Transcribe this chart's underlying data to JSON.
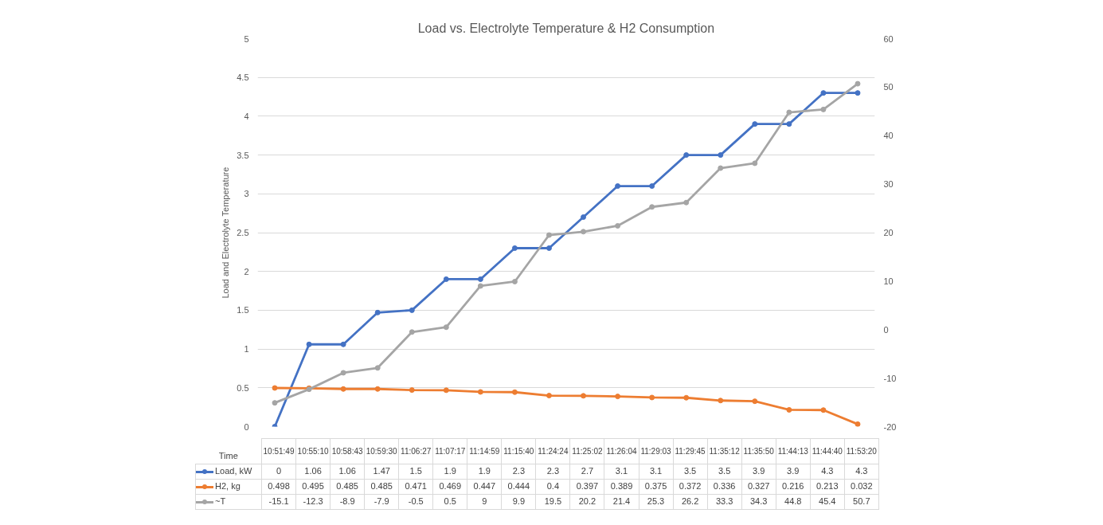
{
  "chart_data": {
    "type": "line",
    "title": "Load vs. Electrolyte Temperature & H2 Consumption",
    "xlabel": "Time",
    "ylabel": "Load and Electrolyte Temperature",
    "categories": [
      "10:51:49",
      "10:55:10",
      "10:58:43",
      "10:59:30",
      "11:06:27",
      "11:07:17",
      "11:14:59",
      "11:15:40",
      "11:24:24",
      "11:25:02",
      "11:26:04",
      "11:29:03",
      "11:29:45",
      "11:35:12",
      "11:35:50",
      "11:44:13",
      "11:44:40",
      "11:53:20"
    ],
    "series": [
      {
        "name": "Load, kW",
        "color": "#4472c4",
        "values": [
          0,
          1.06,
          1.06,
          1.47,
          1.5,
          1.9,
          1.9,
          2.3,
          2.3,
          2.7,
          3.1,
          3.1,
          3.5,
          3.5,
          3.9,
          3.9,
          4.3,
          4.3
        ]
      },
      {
        "name": "H2, kg",
        "color": "#ed7d31",
        "values": [
          0.498,
          0.495,
          0.485,
          0.485,
          0.471,
          0.469,
          0.447,
          0.444,
          0.4,
          0.397,
          0.389,
          0.375,
          0.372,
          0.336,
          0.327,
          0.216,
          0.213,
          0.032
        ]
      },
      {
        "name": "~T",
        "color": "#a5a5a5",
        "axis": "y2",
        "values": [
          -15.1,
          -12.3,
          -8.9,
          -7.9,
          -0.5,
          0.5,
          9,
          9.9,
          19.5,
          20.2,
          21.4,
          25.3,
          26.2,
          33.3,
          34.3,
          44.8,
          45.4,
          50.7
        ]
      }
    ],
    "ylim": [
      0,
      5
    ],
    "yticks": [
      0,
      0.5,
      1,
      1.5,
      2,
      2.5,
      3,
      3.5,
      4,
      4.5,
      5
    ],
    "y2lim": [
      -20,
      60
    ],
    "y2ticks": [
      -20,
      -10,
      0,
      10,
      20,
      30,
      40,
      50,
      60
    ],
    "grid": "y",
    "legend": "bottom",
    "marker": "circle",
    "line_style": "solid",
    "data_labels": true
  }
}
